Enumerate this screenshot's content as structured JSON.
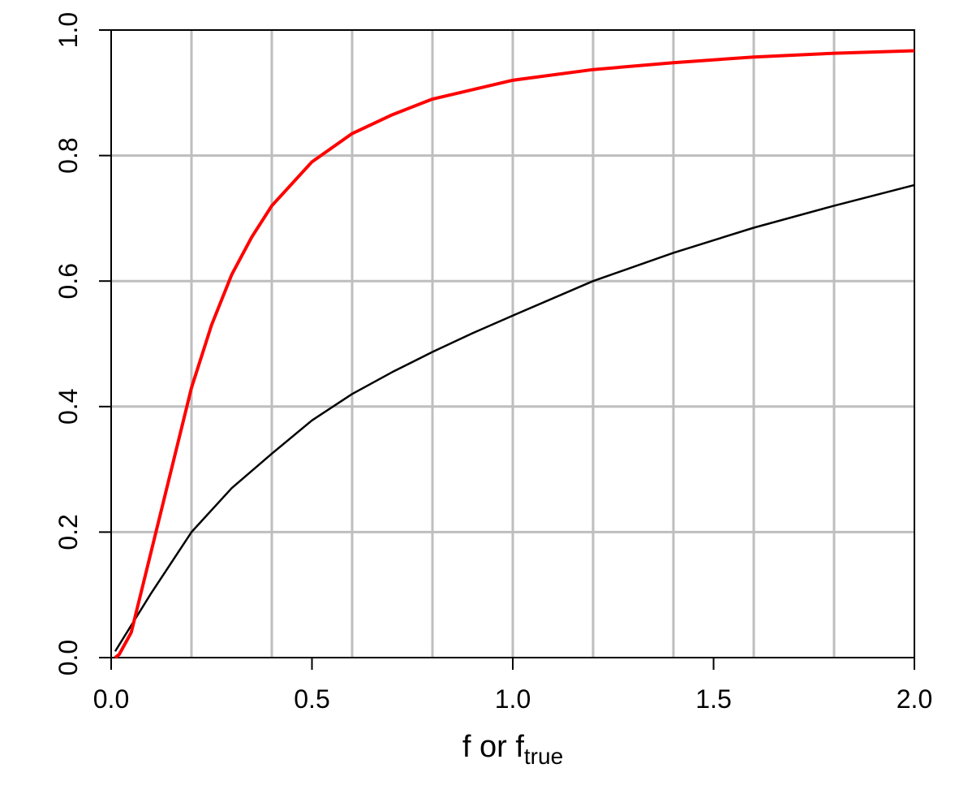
{
  "chart_data": {
    "type": "line",
    "xlabel": {
      "text": "f or f",
      "subscript": "true"
    },
    "xlim": [
      0,
      2.0
    ],
    "xticks": [
      {
        "value": 0,
        "label": "0.0"
      },
      0.5,
      {
        "value": 1,
        "label": "1.0"
      },
      1.5,
      {
        "value": 2,
        "label": "2.0"
      }
    ],
    "ylim": [
      0,
      1.0
    ],
    "yticks": [
      {
        "value": 0,
        "label": "0.0"
      },
      0.2,
      0.4,
      0.6,
      0.8,
      {
        "value": 1,
        "label": "1.0"
      }
    ],
    "xgrid": [
      0.2,
      0.4,
      0.6,
      0.8,
      1.0,
      1.2,
      1.4,
      1.6,
      1.8
    ],
    "ygrid": [
      0.2,
      0.4,
      0.6,
      0.8
    ],
    "grid_color": "#bebebe",
    "series": [
      {
        "color": "#000000",
        "width": 2.5,
        "x": [
          0.01,
          0.1,
          0.2,
          0.3,
          0.4,
          0.5,
          0.6,
          0.7,
          0.8,
          0.9,
          1.0,
          1.2,
          1.4,
          1.6,
          1.8,
          2.0
        ],
        "values": [
          0.01,
          0.103,
          0.2,
          0.27,
          0.325,
          0.378,
          0.42,
          0.455,
          0.487,
          0.517,
          0.545,
          0.6,
          0.645,
          0.685,
          0.72,
          0.753
        ]
      },
      {
        "color": "#ff0000",
        "width": 4,
        "x": [
          0.01,
          0.02,
          0.05,
          0.1,
          0.15,
          0.2,
          0.25,
          0.3,
          0.35,
          0.4,
          0.5,
          0.6,
          0.7,
          0.8,
          0.9,
          1.0,
          1.2,
          1.4,
          1.6,
          1.8,
          2.0
        ],
        "values": [
          0.0,
          0.005,
          0.04,
          0.17,
          0.3,
          0.43,
          0.53,
          0.61,
          0.67,
          0.72,
          0.79,
          0.835,
          0.865,
          0.89,
          0.905,
          0.92,
          0.937,
          0.948,
          0.957,
          0.963,
          0.967
        ]
      }
    ]
  }
}
